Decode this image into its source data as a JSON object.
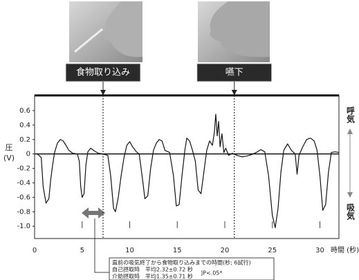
{
  "chart_data": {
    "type": "line",
    "ylabel": [
      "圧",
      "(V)"
    ],
    "xlabel": "時間 (秒)",
    "color": "#111111",
    "x": [
      0.3,
      0.7,
      0.9,
      1.2,
      1.5,
      1.7,
      1.9,
      2.1,
      2.4,
      2.7,
      3.0,
      3.3,
      3.6,
      4.0,
      4.5,
      4.7,
      4.85,
      5.0,
      5.2,
      5.4,
      5.6,
      5.9,
      6.3,
      6.7,
      7.2,
      7.7,
      8.0,
      8.3,
      8.5,
      8.8,
      9.1,
      9.4,
      9.7,
      10.0,
      10.3,
      10.7,
      11.0,
      11.3,
      11.6,
      11.9,
      12.2,
      12.5,
      12.8,
      13.1,
      13.4,
      13.7,
      14.2,
      14.6,
      14.9,
      15.2,
      15.5,
      15.8,
      16.0,
      16.3,
      16.6,
      16.9,
      17.2,
      17.5,
      17.8,
      18.1,
      18.4,
      18.7,
      18.9,
      19.05,
      19.2,
      19.35,
      19.5,
      19.7,
      19.9,
      20.1,
      20.4,
      20.8,
      21.3,
      21.8,
      22.3,
      22.8,
      23.3,
      23.8,
      24.2,
      24.6,
      25.0,
      25.3,
      25.6,
      25.9,
      26.2,
      26.6,
      27.0,
      27.4,
      27.6,
      27.8,
      28.2,
      28.6,
      29.0,
      29.4,
      29.7,
      30.0,
      30.3,
      30.6,
      30.9,
      31.2,
      31.6,
      32.0
    ],
    "values": [
      0,
      -0.05,
      -0.45,
      -0.68,
      -0.62,
      -0.35,
      -0.15,
      0.02,
      0.15,
      0.2,
      0.18,
      0.12,
      0.05,
      0.01,
      0,
      -0.1,
      -0.45,
      -0.6,
      -0.55,
      -0.15,
      0.03,
      0.08,
      0.04,
      0.01,
      0,
      -0.02,
      -0.3,
      -0.75,
      -0.8,
      -0.6,
      -0.3,
      -0.05,
      0.12,
      0.17,
      0.1,
      0.03,
      0,
      -0.3,
      -0.62,
      -0.58,
      -0.2,
      0.05,
      0.15,
      0.2,
      0.18,
      0.05,
      0.02,
      -0.3,
      -0.72,
      -0.7,
      -0.3,
      0.05,
      0.22,
      0.18,
      0.05,
      -0.1,
      -0.5,
      -0.55,
      -0.25,
      0.05,
      0.18,
      0.12,
      0.3,
      0.55,
      0.25,
      0.45,
      0.1,
      0.28,
      0.02,
      0.08,
      -0.02,
      0.01,
      -0.02,
      -0.04,
      -0.03,
      -0.01,
      0.02,
      0.06,
      0.03,
      -0.3,
      -0.85,
      -1.02,
      -0.75,
      -0.25,
      0.05,
      0.14,
      0.05,
      0,
      -0.28,
      -0.02,
      0.1,
      0.2,
      0.22,
      0.18,
      0.05,
      -0.3,
      -0.78,
      -0.7,
      -0.25,
      0.02,
      0.03,
      0.02
    ],
    "xlim": [
      0,
      32
    ],
    "ylim": [
      -1.17,
      0.81
    ],
    "xticks": [
      0,
      5,
      10,
      15,
      20,
      25,
      30
    ],
    "yticks": [
      0.6,
      0.4,
      0.2,
      0,
      -0.2,
      -0.4,
      -0.6,
      -0.8,
      {
        "value": -1,
        "label": "-1.0"
      }
    ],
    "upper_label": "呼気",
    "lower_label": "吸気",
    "annotations": [
      {
        "text": "食物取り込み",
        "x": 7.2
      },
      {
        "text": "嚥下",
        "x": 21
      }
    ],
    "note": {
      "title": "直前の吸気終了から食物取り込みまでの時間(秒; 6試行)",
      "rows": [
        "自己摂取時　平均2.32±0.72 秒",
        "介助摂取時　平均1.35±0.71 秒"
      ],
      "significance": "]P<.05*"
    }
  }
}
